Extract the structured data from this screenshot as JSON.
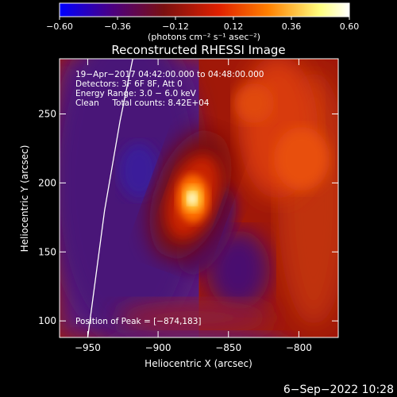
{
  "chart_data": {
    "type": "heatmap",
    "title": "Reconstructed RHESSI Image",
    "xlabel": "Heliocentric X (arcsec)",
    "ylabel": "Heliocentric Y (arcsec)",
    "xlim": [
      -970,
      -772
    ],
    "ylim": [
      88,
      290
    ],
    "x_ticks": [
      -950,
      -900,
      -850,
      -800
    ],
    "x_tick_labels": [
      "−950",
      "−900",
      "−850",
      "−800"
    ],
    "y_ticks": [
      100,
      150,
      200,
      250
    ],
    "y_tick_labels": [
      "100",
      "150",
      "200",
      "250"
    ],
    "colorbar": {
      "range": [
        -0.6,
        0.6
      ],
      "ticks": [
        -0.6,
        -0.36,
        -0.12,
        0.12,
        0.36,
        0.6
      ],
      "tick_labels": [
        "−0.60",
        "−0.36",
        "−0.12",
        "0.12",
        "0.36",
        "0.60"
      ],
      "unit_label": "(photons cm⁻² s⁻¹ asec⁻²)",
      "colors": [
        "#0000ff",
        "#4b0082",
        "#7a1010",
        "#e02000",
        "#ff8000",
        "#ffff80",
        "#ffffff"
      ]
    },
    "info_lines": [
      "19−Apr−2017 04:42:00.000 to 04:48:00.000",
      "Detectors: 3F 6F 8F, Att 0",
      "Energy Range: 3.0 − 6.0 keV",
      "Clean     Total counts: 8.42E+04"
    ],
    "peak_label": "Position of Peak = [−874,183]",
    "peak": {
      "x": -874,
      "y": 183,
      "value": 0.6
    },
    "limb_curve": [
      [
        -950,
        88
      ],
      [
        -938,
        180
      ],
      [
        -927,
        245
      ],
      [
        -918,
        290
      ]
    ],
    "timestamp": "6−Sep−2022 10:28",
    "grid": false,
    "legend": "colorbar-top"
  }
}
